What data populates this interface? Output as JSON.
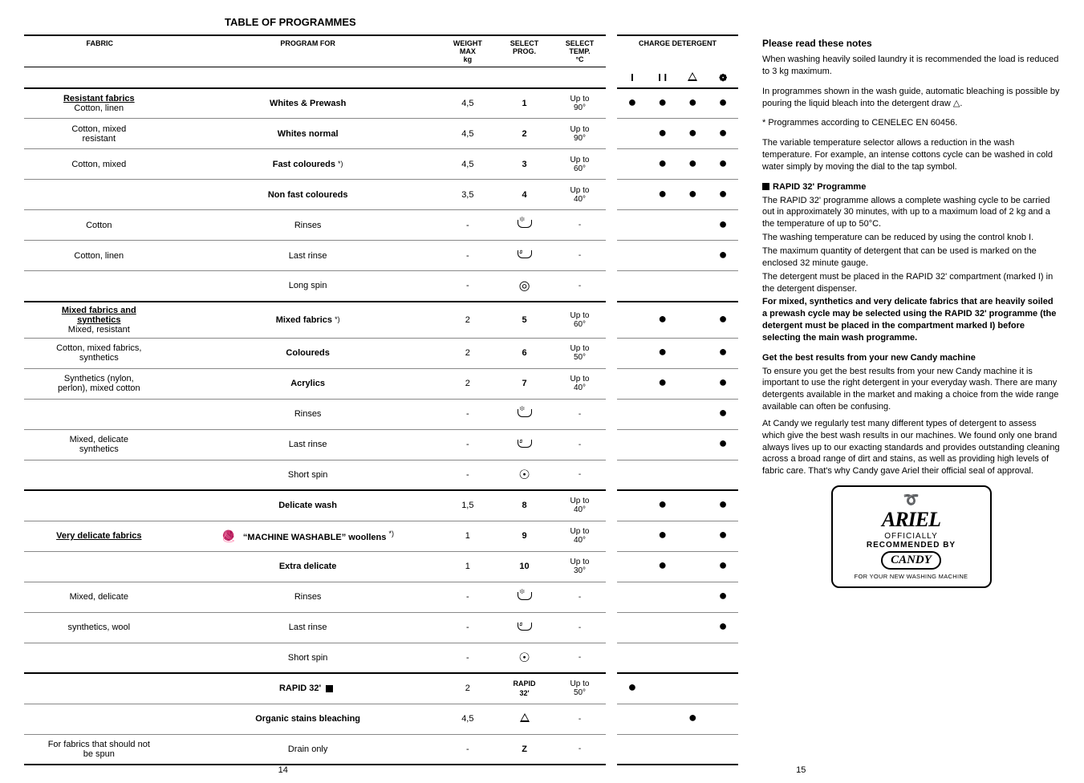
{
  "title": "TABLE OF PROGRAMMES",
  "headers": {
    "fabric": "FABRIC",
    "program_for": "PROGRAM FOR",
    "weight": "WEIGHT MAX kg",
    "select_prog": "SELECT PROG.",
    "select_temp": "SELECT TEMP. °C",
    "charge_detergent": "CHARGE DETERGENT",
    "det_cols": [
      "I",
      "I I",
      "△",
      "❁"
    ]
  },
  "sections": [
    {
      "fabric_lines": [
        "<b><u>Resistant fabrics</u></b>",
        "Cotton, linen"
      ],
      "program": "Whites & Prewash",
      "program_bold": true,
      "weight": "4,5",
      "prog": "1",
      "temp": "Up to 90°",
      "dots": [
        true,
        true,
        true,
        true
      ]
    },
    {
      "fabric_lines": [
        "Cotton, mixed",
        "resistant"
      ],
      "program": "Whites normal",
      "program_bold": true,
      "weight": "4,5",
      "prog": "2",
      "temp": "Up to 90°",
      "dots": [
        false,
        true,
        true,
        true
      ]
    },
    {
      "fabric_lines": [
        "Cotton, mixed"
      ],
      "program": "Fast coloureds",
      "program_bold": true,
      "star": true,
      "weight": "4,5",
      "prog": "3",
      "temp": "Up to 60°",
      "dots": [
        false,
        true,
        true,
        true
      ]
    },
    {
      "fabric_lines": [
        ""
      ],
      "program": "Non fast coloureds",
      "program_bold": true,
      "weight": "3,5",
      "prog": "4",
      "temp": "Up to 40°",
      "dots": [
        false,
        true,
        true,
        true
      ]
    },
    {
      "fabric_lines": [
        "Cotton"
      ],
      "program": "Rinses",
      "weight": "-",
      "prog": "basin-spray",
      "temp": "-",
      "dots": [
        false,
        false,
        false,
        true
      ]
    },
    {
      "fabric_lines": [
        "Cotton, linen"
      ],
      "program": "Last rinse",
      "weight": "-",
      "prog": "basin-drop",
      "temp": "-",
      "dots": [
        false,
        false,
        false,
        true
      ]
    },
    {
      "fabric_lines": [
        ""
      ],
      "program": "Long spin",
      "weight": "-",
      "prog": "spiral-long",
      "temp": "-",
      "dots": [
        false,
        false,
        false,
        false
      ],
      "sep": true
    },
    {
      "fabric_lines": [
        "<b><u>Mixed fabrics and</u></b>",
        "<b><u>synthetics</u></b>",
        "Mixed, resistant"
      ],
      "program": "Mixed fabrics",
      "program_bold": true,
      "star": true,
      "weight": "2",
      "prog": "5",
      "temp": "Up to 60°",
      "dots": [
        false,
        true,
        false,
        true
      ]
    },
    {
      "fabric_lines": [
        "Cotton, mixed fabrics,",
        "synthetics"
      ],
      "program": "Coloureds",
      "program_bold": true,
      "weight": "2",
      "prog": "6",
      "temp": "Up to 50°",
      "dots": [
        false,
        true,
        false,
        true
      ]
    },
    {
      "fabric_lines": [
        "Synthetics (nylon,",
        "perlon), mixed cotton"
      ],
      "program": "Acrylics",
      "program_bold": true,
      "weight": "2",
      "prog": "7",
      "temp": "Up to 40°",
      "dots": [
        false,
        true,
        false,
        true
      ]
    },
    {
      "fabric_lines": [
        ""
      ],
      "program": "Rinses",
      "weight": "-",
      "prog": "basin-spray",
      "temp": "-",
      "dots": [
        false,
        false,
        false,
        true
      ]
    },
    {
      "fabric_lines": [
        "Mixed, delicate",
        "synthetics"
      ],
      "program": "Last rinse",
      "weight": "-",
      "prog": "basin-drop",
      "temp": "-",
      "dots": [
        false,
        false,
        false,
        true
      ]
    },
    {
      "fabric_lines": [
        ""
      ],
      "program": "Short spin",
      "weight": "-",
      "prog": "spiral-short",
      "temp": "-",
      "dots": [
        false,
        false,
        false,
        false
      ],
      "sep": true
    },
    {
      "fabric_lines": [
        ""
      ],
      "program": "Delicate wash",
      "program_bold": true,
      "weight": "1,5",
      "prog": "8",
      "temp": "Up to 40°",
      "dots": [
        false,
        true,
        false,
        true
      ]
    },
    {
      "fabric_lines": [
        "<b><u>Very delicate fabrics</u></b>"
      ],
      "program": "“MACHINE WASHABLE” woollens",
      "program_bold": true,
      "wool_icon": true,
      "star": true,
      "weight": "1",
      "prog": "9",
      "temp": "Up to 40°",
      "dots": [
        false,
        true,
        false,
        true
      ]
    },
    {
      "fabric_lines": [
        ""
      ],
      "program": "Extra delicate",
      "program_bold": true,
      "weight": "1",
      "prog": "10",
      "temp": "Up to 30°",
      "dots": [
        false,
        true,
        false,
        true
      ]
    },
    {
      "fabric_lines": [
        "Mixed, delicate"
      ],
      "program": "Rinses",
      "weight": "-",
      "prog": "basin-spray",
      "temp": "-",
      "dots": [
        false,
        false,
        false,
        true
      ]
    },
    {
      "fabric_lines": [
        "synthetics, wool"
      ],
      "program": "Last rinse",
      "weight": "-",
      "prog": "basin-drop",
      "temp": "-",
      "dots": [
        false,
        false,
        false,
        true
      ]
    },
    {
      "fabric_lines": [
        ""
      ],
      "program": "Short spin",
      "weight": "-",
      "prog": "spiral-short",
      "temp": "-",
      "dots": [
        false,
        false,
        false,
        false
      ],
      "sep": true
    },
    {
      "fabric_lines": [
        ""
      ],
      "program": "RAPID 32'",
      "program_bold": true,
      "black_sq": true,
      "weight": "2",
      "prog": "RAPID 32'",
      "temp": "Up to 50°",
      "dots": [
        true,
        false,
        false,
        false
      ]
    },
    {
      "fabric_lines": [
        ""
      ],
      "program": "Organic stains bleaching",
      "program_bold": true,
      "weight": "4,5",
      "prog": "triangle",
      "temp": "-",
      "dots": [
        false,
        false,
        true,
        false
      ]
    },
    {
      "fabric_lines": [
        "For fabrics that should not",
        "be spun"
      ],
      "program": "Drain only",
      "weight": "-",
      "prog": "Z",
      "temp": "-",
      "dots": [
        false,
        false,
        false,
        false
      ],
      "sep": true
    }
  ],
  "right": {
    "t1": "Please read these notes",
    "p1": "When washing heavily soiled laundry it is recommended the load is reduced to 3 kg maximum.",
    "p2": "In programmes shown in the wash guide, automatic bleaching is possible by pouring the liquid bleach into the detergent draw △.",
    "p3": "* Programmes according to CENELEC EN 60456.",
    "p4": "The variable temperature selector allows a reduction in the wash temperature. For example, an intense cottons cycle can be washed in cold water simply by moving the dial to the tap symbol.",
    "t2": "RAPID 32' Programme",
    "p5": "The RAPID 32' programme allows a complete washing cycle to be carried out in approximately 30 minutes, with up to a maximum load of 2 kg and a the temperature of up to 50°C.",
    "p5b": "The washing temperature can be reduced by using the control knob I.",
    "p5c": "The maximum quantity of detergent that can be used is marked on the enclosed 32 minute gauge.",
    "p5d": "The detergent must be placed in the  RAPID 32'  compartment (marked I) in the detergent dispenser.",
    "p6": "For mixed, synthetics and very delicate fabrics that are heavily soiled a prewash cycle may be selected using the RAPID 32' programme (the detergent must be placed in the compartment marked I) before selecting the main wash programme.",
    "t3": "Get the best results from your new Candy machine",
    "p7": "To ensure you get the best results from your new Candy machine it is important to use the right detergent in your everyday wash. There are many detergents available in the market and making a choice from the wide range available can often be confusing.",
    "p8": "At Candy we regularly test many different types of detergent to assess which give the best wash results in our machines. We found only one brand always lives up to our exacting standards and provides outstanding cleaning across a broad range of dirt and stains, as well as providing high levels of fabric care. That's why Candy gave Ariel their official seal of approval.",
    "ariel": {
      "officially": "OFFICIALLY",
      "recommended": "RECOMMENDED BY",
      "name": "ARIEL",
      "candy": "CANDY",
      "footer": "FOR YOUR NEW WASHING MACHINE"
    }
  },
  "page_left": "14",
  "page_right": "15"
}
